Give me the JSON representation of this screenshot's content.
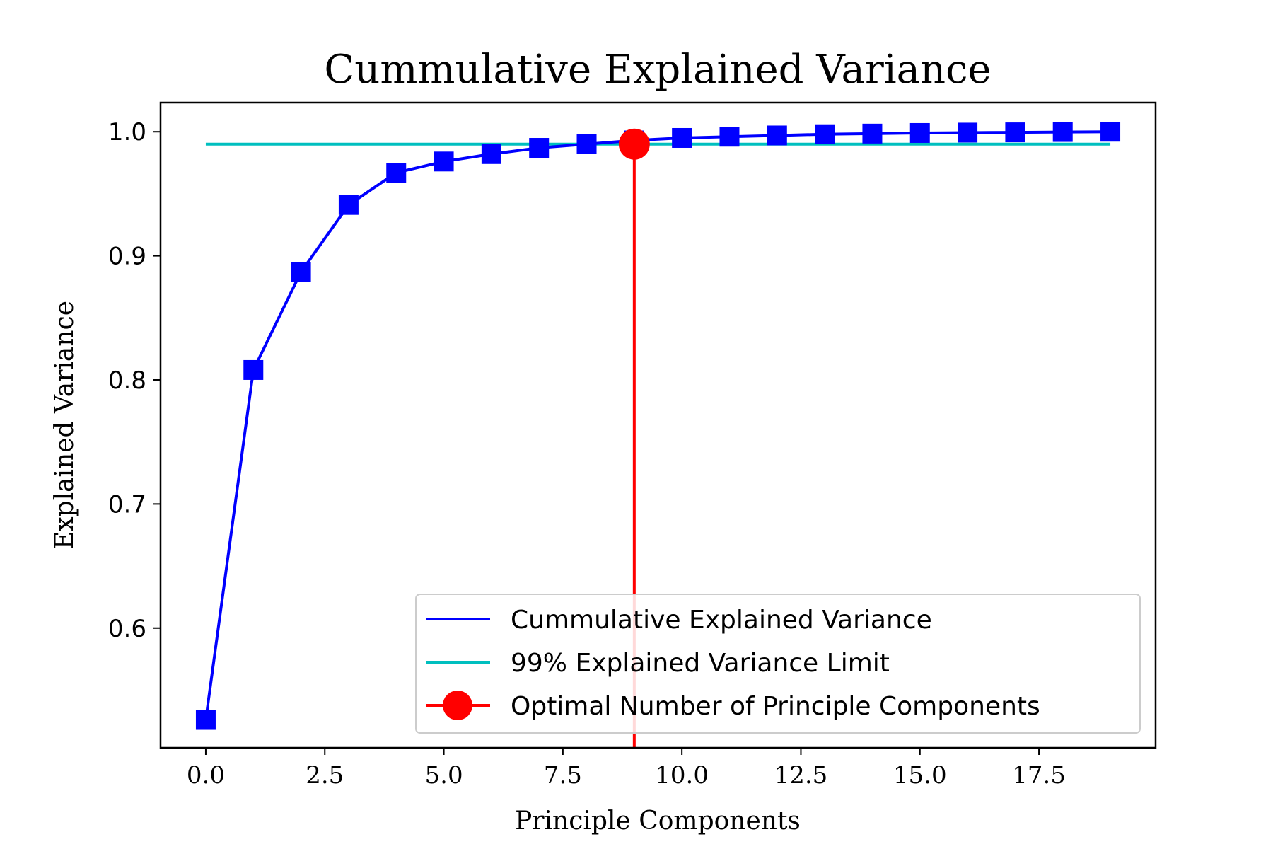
{
  "chart_data": {
    "type": "line",
    "title": "Cummulative Explained Variance",
    "xlabel": "Principle Components",
    "ylabel": "Explained Variance",
    "xlim": [
      -0.95,
      19.95
    ],
    "ylim": [
      0.5035,
      1.0235
    ],
    "xticks": [
      "0.0",
      "2.5",
      "5.0",
      "7.5",
      "10.0",
      "12.5",
      "15.0",
      "17.5"
    ],
    "xtick_values": [
      0,
      2.5,
      5,
      7.5,
      10,
      12.5,
      15,
      17.5
    ],
    "yticks": [
      "0.6",
      "0.7",
      "0.8",
      "0.9",
      "1.0"
    ],
    "ytick_values": [
      0.6,
      0.7,
      0.8,
      0.9,
      1.0
    ],
    "grid": false,
    "legend_position": "lower-right",
    "series": [
      {
        "name": "Cummulative Explained Variance",
        "color": "#0000ff",
        "marker": "square",
        "x": [
          0,
          1,
          2,
          3,
          4,
          5,
          6,
          7,
          8,
          9,
          10,
          11,
          12,
          13,
          14,
          15,
          16,
          17,
          18,
          19
        ],
        "values": [
          0.526,
          0.808,
          0.887,
          0.941,
          0.967,
          0.976,
          0.982,
          0.987,
          0.99,
          0.993,
          0.995,
          0.996,
          0.997,
          0.998,
          0.9985,
          0.999,
          0.9993,
          0.9995,
          0.9998,
          1.0
        ]
      },
      {
        "name": "99% Explained Variance Limit",
        "color": "#00bfbf",
        "x": [
          0,
          19
        ],
        "values": [
          0.99,
          0.99
        ]
      },
      {
        "name": "Optimal Number of Principle Components",
        "color": "#ff0000",
        "marker": "circle",
        "x": [
          9
        ],
        "values": [
          0.99
        ]
      }
    ]
  }
}
